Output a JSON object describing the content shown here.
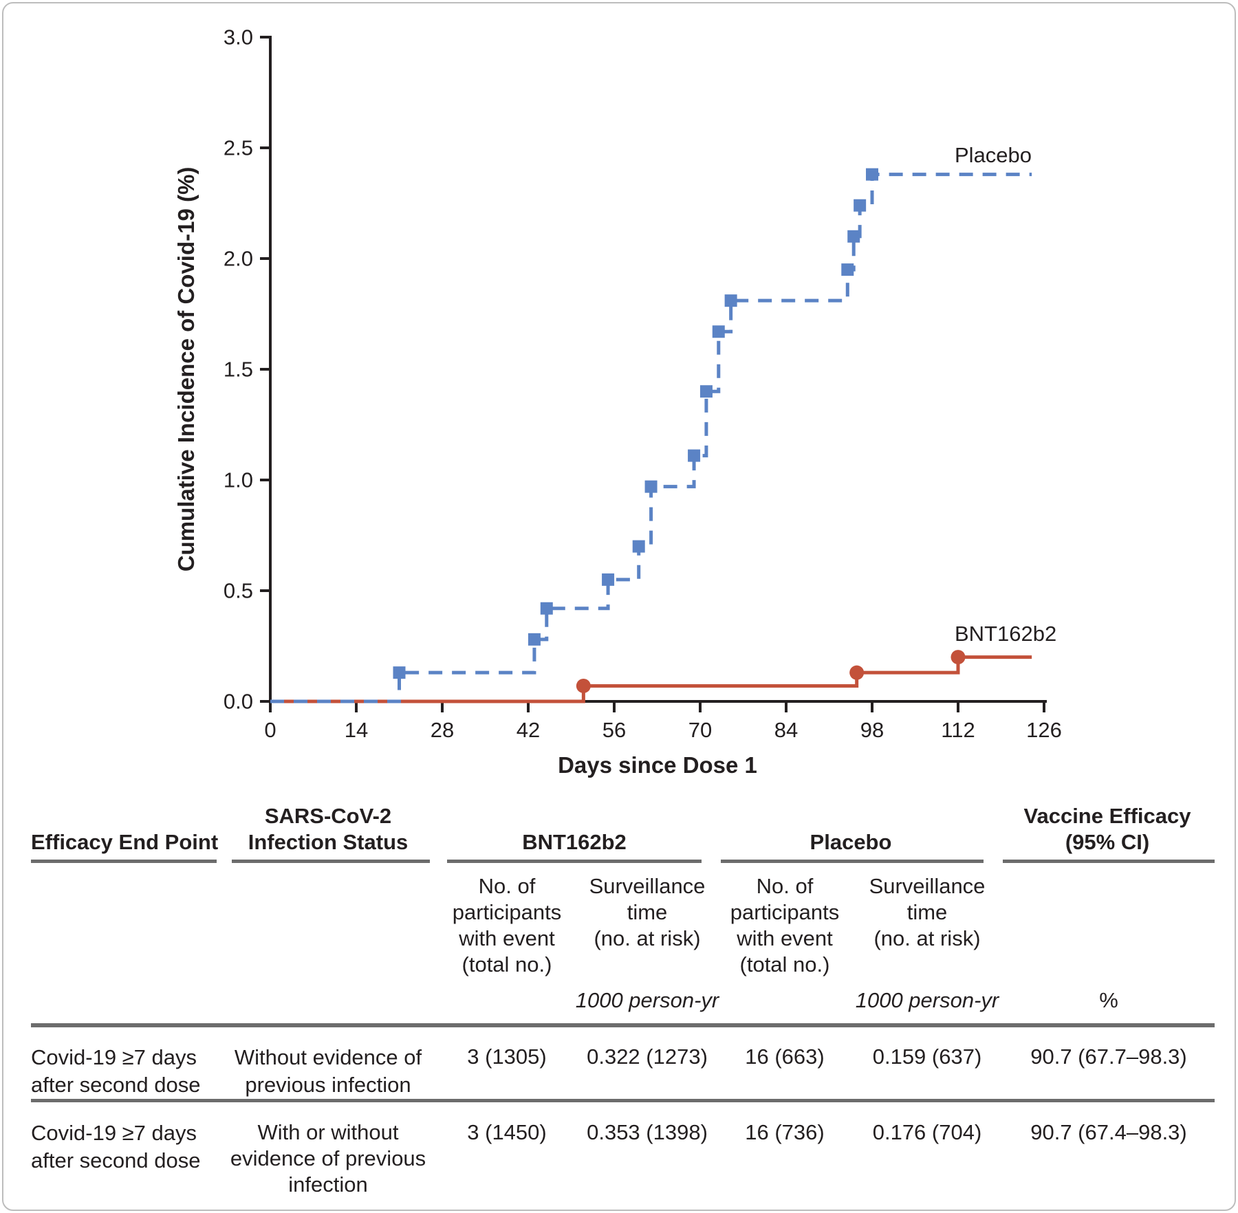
{
  "chart_data": {
    "type": "line",
    "subtype": "kaplan-meier-step",
    "title": "",
    "xlabel": "Days since Dose 1",
    "ylabel": "Cumulative Incidence of Covid-19 (%)",
    "xlim": [
      0,
      126
    ],
    "ylim": [
      0,
      3.0
    ],
    "x_ticks": [
      0,
      14,
      28,
      42,
      56,
      70,
      84,
      98,
      112,
      126
    ],
    "y_ticks": [
      {
        "value": 0.0,
        "label": "0.0"
      },
      {
        "value": 0.5,
        "label": "0.5"
      },
      {
        "value": 1.0,
        "label": "1.0"
      },
      {
        "value": 1.5,
        "label": "1.5"
      },
      {
        "value": 2.0,
        "label": "2.0"
      },
      {
        "value": 2.5,
        "label": "2.5"
      },
      {
        "value": 3.0,
        "label": "3.0"
      }
    ],
    "grid": false,
    "legend_position": "inline-labels",
    "curve_end_day": 124,
    "series": [
      {
        "name": "Placebo",
        "color": "#5b83c5",
        "line_style": "dashed",
        "marker": "square",
        "events": [
          [
            21,
            0.13
          ],
          [
            43,
            0.28
          ],
          [
            45,
            0.42
          ],
          [
            55,
            0.55
          ],
          [
            60,
            0.7
          ],
          [
            62,
            0.97
          ],
          [
            69,
            1.11
          ],
          [
            71,
            1.4
          ],
          [
            73,
            1.67
          ],
          [
            75,
            1.81
          ],
          [
            94,
            1.95
          ],
          [
            95,
            2.1
          ],
          [
            96,
            2.24
          ],
          [
            98,
            2.38
          ]
        ]
      },
      {
        "name": "BNT162b2",
        "color": "#c3513a",
        "line_style": "solid",
        "marker": "circle",
        "events": [
          [
            51,
            0.07
          ],
          [
            95.5,
            0.13
          ],
          [
            112,
            0.2
          ]
        ]
      }
    ]
  },
  "table": {
    "headers": {
      "endpoint": "Efficacy End Point",
      "infection_status": "SARS-CoV-2\nInfection Status",
      "group_bnt": "BNT162b2",
      "group_placebo": "Placebo",
      "vaccine_efficacy": "Vaccine Efficacy\n(95% CI)",
      "sub_events": "No. of\nparticipants\nwith event\n(total no.)",
      "sub_surveillance": "Surveillance\ntime\n(no. at risk)",
      "unit_person_yr": "1000 person-yr",
      "unit_percent": "%"
    },
    "rows": [
      {
        "endpoint": "Covid-19 ≥7 days\nafter second dose",
        "status": "Without evidence of\nprevious infection",
        "bnt_events": "3 (1305)",
        "bnt_surveillance": "0.322 (1273)",
        "placebo_events": "16 (663)",
        "placebo_surveillance": "0.159 (637)",
        "vaccine_efficacy": "90.7 (67.7–98.3)"
      },
      {
        "endpoint": "Covid-19 ≥7 days\nafter second dose",
        "status": "With or without\nevidence of previous\ninfection",
        "bnt_events": "3 (1450)",
        "bnt_surveillance": "0.353 (1398)",
        "placebo_events": "16 (736)",
        "placebo_surveillance": "0.176 (704)",
        "vaccine_efficacy": "90.7 (67.4–98.3)"
      }
    ]
  }
}
